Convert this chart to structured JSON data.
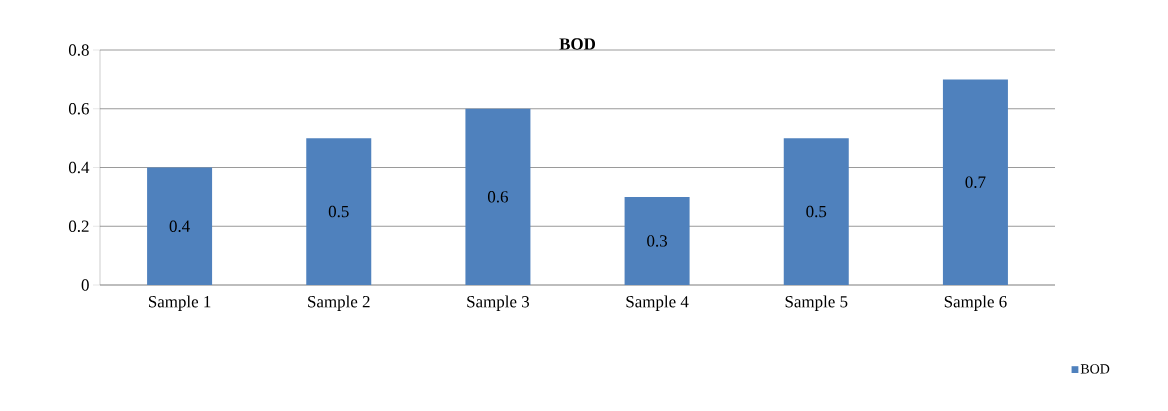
{
  "chart_data": {
    "type": "bar",
    "title": "BOD",
    "categories": [
      "Sample 1",
      "Sample 2",
      "Sample 3",
      "Sample 4",
      "Sample 5",
      "Sample 6"
    ],
    "series": [
      {
        "name": "BOD",
        "color": "#4f81bd",
        "values": [
          0.4,
          0.5,
          0.6,
          0.3,
          0.5,
          0.7
        ]
      }
    ],
    "ylim": [
      0,
      0.8
    ],
    "yticks": [
      0,
      0.2,
      0.4,
      0.6,
      0.8
    ],
    "grid": "y",
    "legend": "bottom right",
    "data_labels": true
  }
}
